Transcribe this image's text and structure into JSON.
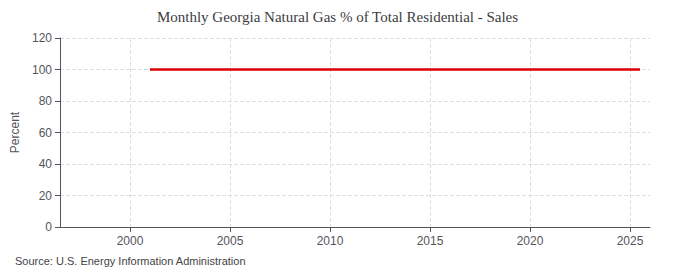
{
  "chart_data": {
    "type": "line",
    "title": "Monthly Georgia Natural Gas % of Total Residential - Sales",
    "ylabel": "Percent",
    "annotation": "Source: U.S. Energy Information Administration",
    "x": [
      2001,
      2025.5
    ],
    "values": [
      100,
      100
    ],
    "color": "#dd0000",
    "xlim": [
      1996.5,
      2026
    ],
    "xticks": [
      2000,
      2005,
      2010,
      2015,
      2020,
      2025
    ],
    "ylim": [
      0,
      120
    ],
    "yticks": [
      0,
      20,
      40,
      60,
      80,
      100,
      120
    ],
    "grid": true
  }
}
